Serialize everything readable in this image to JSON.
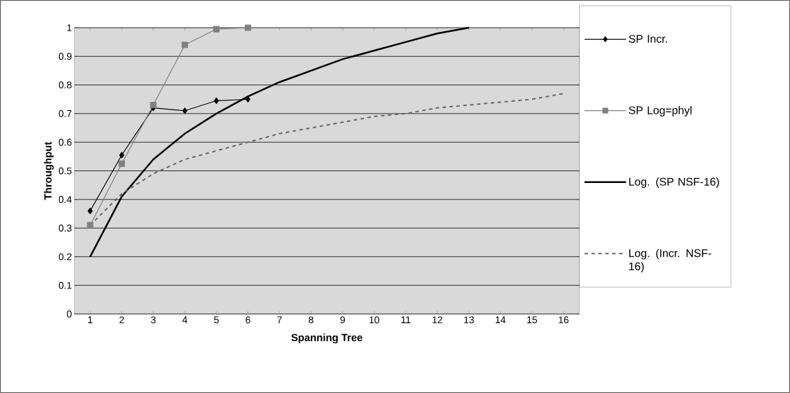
{
  "chart_data": {
    "type": "line",
    "xlabel": "Spanning Tree",
    "ylabel": "Throughput",
    "categories": [
      "1",
      "2",
      "3",
      "4",
      "5",
      "6",
      "7",
      "8",
      "9",
      "10",
      "11",
      "12",
      "13",
      "14",
      "15",
      "16"
    ],
    "series": [
      {
        "name": "SP Incr.",
        "color": "#000000",
        "marker": "diamond",
        "line_style": "solid",
        "values": [
          0.36,
          0.555,
          0.72,
          0.71,
          0.745,
          0.75,
          null,
          null,
          null,
          null,
          null,
          null,
          null,
          null,
          null,
          null
        ]
      },
      {
        "name": "SP Log=phyl",
        "color": "#808080",
        "marker": "square",
        "line_style": "solid",
        "values": [
          0.31,
          0.525,
          0.73,
          0.94,
          0.995,
          1.0,
          null,
          null,
          null,
          null,
          null,
          null,
          null,
          null,
          null,
          null
        ]
      },
      {
        "name": "Log. (SP NSF-16)",
        "color": "#000000",
        "marker": "none",
        "line_style": "solid",
        "values": [
          0.2,
          0.41,
          0.54,
          0.63,
          0.7,
          0.76,
          0.81,
          0.85,
          0.89,
          0.92,
          0.95,
          0.98,
          1.0,
          null,
          null,
          null
        ]
      },
      {
        "name": "Log. (Incr. NSF-16)",
        "color": "#666666",
        "marker": "none",
        "line_style": "dashed",
        "values": [
          0.31,
          0.42,
          0.49,
          0.54,
          0.57,
          0.6,
          0.63,
          0.65,
          0.67,
          0.69,
          0.7,
          0.72,
          0.73,
          0.74,
          0.75,
          0.77
        ]
      }
    ],
    "ylim": [
      0,
      1
    ],
    "yticks": [
      0,
      0.1,
      0.2,
      0.3,
      0.4,
      0.5,
      0.6,
      0.7,
      0.8,
      0.9,
      1
    ],
    "grid": "y",
    "legend": "right"
  }
}
